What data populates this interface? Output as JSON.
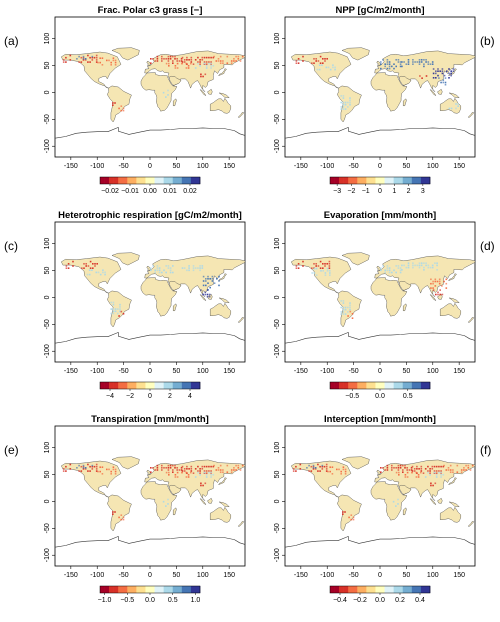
{
  "figure": {
    "panels": [
      {
        "id": "a",
        "letter": "(a)",
        "title": "Frac. Polar c3 grass [−]",
        "x_ticks": [
          "-150",
          "-100",
          "-50",
          "0",
          "50",
          "100",
          "150"
        ],
        "y_ticks": [
          "100",
          "50",
          "0",
          "-50",
          "-100"
        ],
        "legend": {
          "labels": [
            "−0.02",
            "−0.01",
            "0.00",
            "0.01",
            "0.02"
          ],
          "values": [
            -0.02,
            -0.01,
            0.0,
            0.01,
            0.02
          ],
          "range": [
            -0.025,
            0.025
          ]
        },
        "highlight": "north"
      },
      {
        "id": "b",
        "letter": "(b)",
        "title": "NPP [gC/m2/month]",
        "x_ticks": [
          "-150",
          "-100",
          "-50",
          "0",
          "50",
          "100",
          "150"
        ],
        "y_ticks": [
          "100",
          "50",
          "0",
          "-50",
          "-100"
        ],
        "legend": {
          "labels": [
            "−3",
            "−2",
            "−1",
            "0",
            "1",
            "2",
            "3"
          ],
          "values": [
            -3,
            -2,
            -1,
            0,
            1,
            2,
            3
          ],
          "range": [
            -3.5,
            3.5
          ]
        },
        "highlight": "npp"
      },
      {
        "id": "c",
        "letter": "(c)",
        "title": "Heterotrophic respiration [gC/m2/month]",
        "x_ticks": [
          "-150",
          "-100",
          "-50",
          "0",
          "50",
          "100",
          "150"
        ],
        "y_ticks": [
          "100",
          "50",
          "0",
          "-50",
          "-100"
        ],
        "legend": {
          "labels": [
            "−4",
            "−2",
            "0",
            "2",
            "4"
          ],
          "values": [
            -4,
            -2,
            0,
            2,
            4
          ],
          "range": [
            -5,
            5
          ]
        },
        "highlight": "resp"
      },
      {
        "id": "d",
        "letter": "(d)",
        "title": "Evaporation [mm/month]",
        "x_ticks": [
          "-150",
          "-100",
          "-50",
          "0",
          "50",
          "100",
          "150"
        ],
        "y_ticks": [
          "100",
          "50",
          "0",
          "-50",
          "-100"
        ],
        "legend": {
          "labels": [
            "−0.5",
            "0.0",
            "0.5"
          ],
          "values": [
            -0.5,
            0.0,
            0.5
          ],
          "range": [
            -0.9,
            0.9
          ]
        },
        "highlight": "evap"
      },
      {
        "id": "e",
        "letter": "(e)",
        "title": "Transpiration [mm/month]",
        "x_ticks": [
          "-150",
          "-100",
          "-50",
          "0",
          "50",
          "100",
          "150"
        ],
        "y_ticks": [
          "100",
          "50",
          "0",
          "-50",
          "-100"
        ],
        "legend": {
          "labels": [
            "−1.0",
            "−0.5",
            "0.0",
            "0.5",
            "1.0"
          ],
          "values": [
            -1.0,
            -0.5,
            0.0,
            0.5,
            1.0
          ],
          "range": [
            -1.1,
            1.1
          ]
        },
        "highlight": "north"
      },
      {
        "id": "f",
        "letter": "(f)",
        "title": "Interception [mm/month]",
        "x_ticks": [
          "-150",
          "-100",
          "-50",
          "0",
          "50",
          "100",
          "150"
        ],
        "y_ticks": [
          "100",
          "50",
          "0",
          "-50",
          "-100"
        ],
        "legend": {
          "labels": [
            "−0.4",
            "−0.2",
            "0.0",
            "0.2",
            "0.4"
          ],
          "values": [
            -0.4,
            -0.2,
            0.0,
            0.2,
            0.4
          ],
          "range": [
            -0.5,
            0.5
          ]
        },
        "highlight": "north"
      }
    ],
    "colors": {
      "land": "#f5e6b3",
      "border": "#444444",
      "red": "#d73027",
      "orange": "#f46d43",
      "lightblue": "#abd9e9",
      "blue": "#4575b4",
      "navy": "#313695"
    }
  }
}
